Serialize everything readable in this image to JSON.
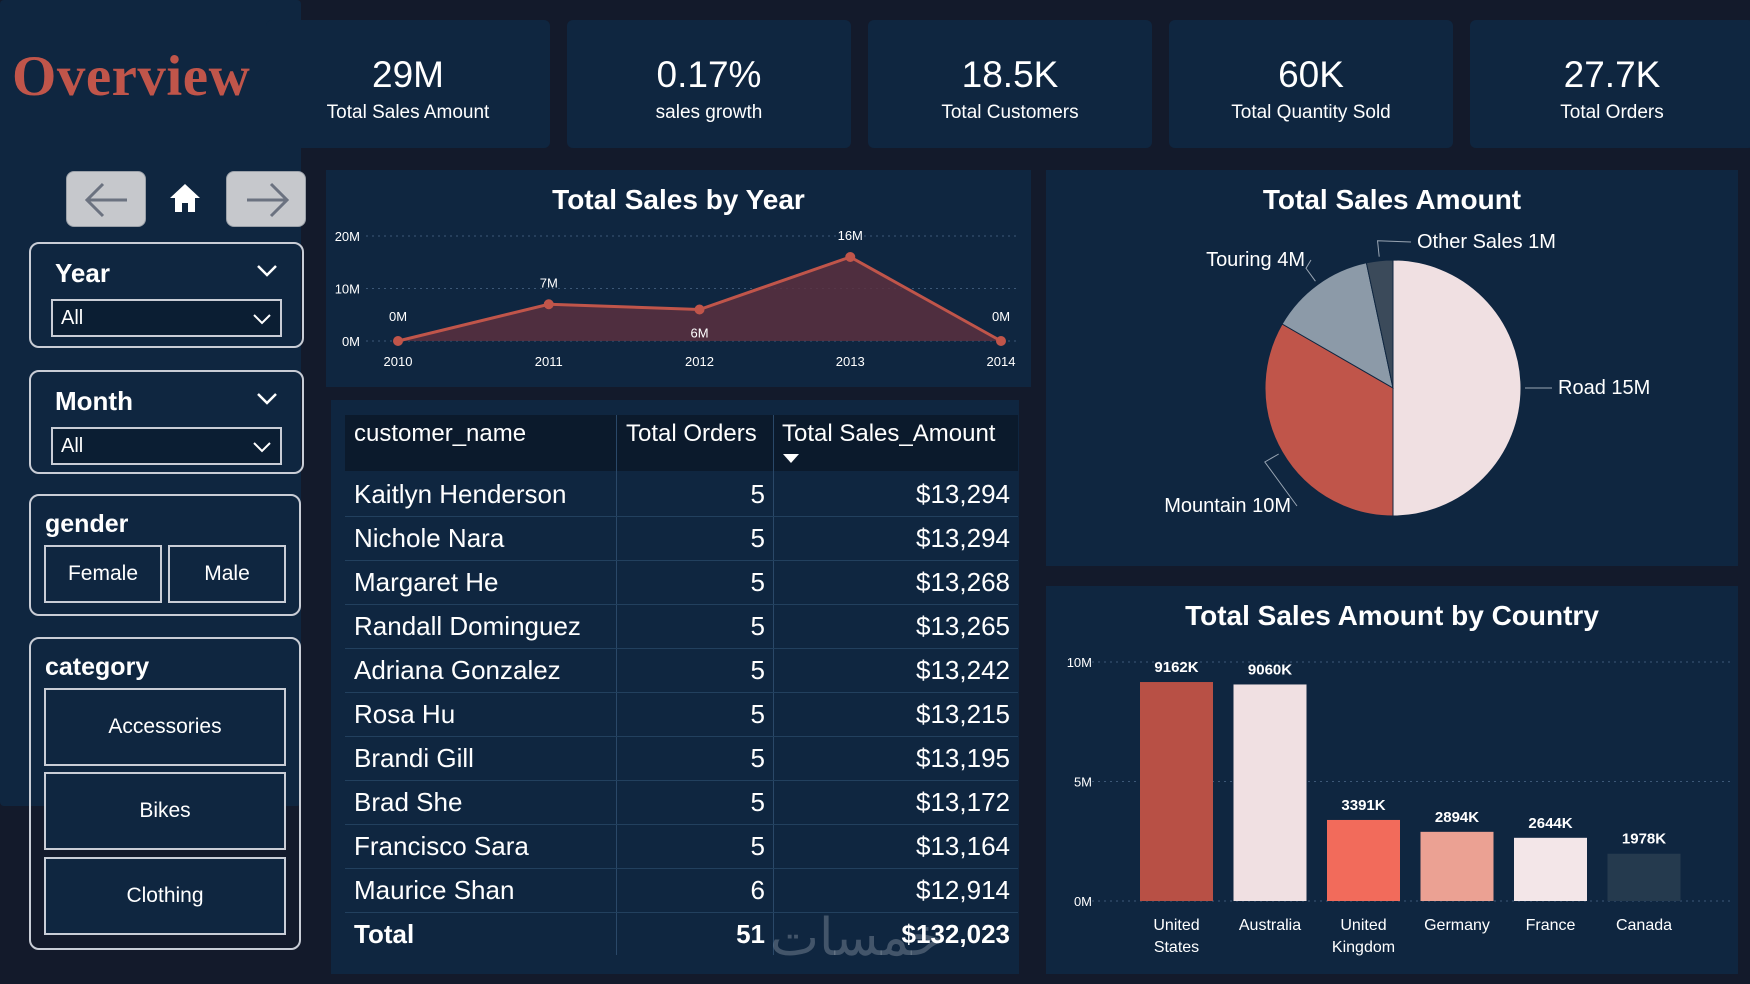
{
  "title": "Overview",
  "kpis": [
    {
      "value": "29M",
      "label": "Total Sales Amount"
    },
    {
      "value": "0.17%",
      "label": "sales growth"
    },
    {
      "value": "18.5K",
      "label": "Total Customers"
    },
    {
      "value": "60K",
      "label": "Total Quantity Sold"
    },
    {
      "value": "27.7K",
      "label": "Total Orders"
    }
  ],
  "filters": {
    "year": {
      "label": "Year",
      "value": "All"
    },
    "month": {
      "label": "Month",
      "value": "All"
    },
    "gender": {
      "label": "gender",
      "options": [
        "Female",
        "Male"
      ]
    },
    "category": {
      "label": "category",
      "options": [
        "Accessories",
        "Bikes",
        "Clothing"
      ]
    }
  },
  "icons": [
    "arrow-left-icon",
    "home-icon",
    "arrow-right-icon",
    "chevron-down-icon"
  ],
  "colors": {
    "background": "#131a2b",
    "panel": "#0f2640",
    "accent": "#c0554a",
    "line": "#c0554a",
    "area": "#5a3040"
  },
  "table": {
    "headers": [
      "customer_name",
      "Total Orders",
      "Total Sales_Amount"
    ],
    "sort_column": "Total Sales_Amount",
    "rows": [
      [
        "Kaitlyn Henderson",
        "5",
        "$13,294"
      ],
      [
        "Nichole Nara",
        "5",
        "$13,294"
      ],
      [
        "Margaret He",
        "5",
        "$13,268"
      ],
      [
        "Randall Dominguez",
        "5",
        "$13,265"
      ],
      [
        "Adriana Gonzalez",
        "5",
        "$13,242"
      ],
      [
        "Rosa Hu",
        "5",
        "$13,215"
      ],
      [
        "Brandi Gill",
        "5",
        "$13,195"
      ],
      [
        "Brad She",
        "5",
        "$13,172"
      ],
      [
        "Francisco Sara",
        "5",
        "$13,164"
      ],
      [
        "Maurice Shan",
        "6",
        "$12,914"
      ]
    ],
    "total": [
      "Total",
      "51",
      "$132,023"
    ]
  },
  "watermark": "خمسات",
  "chart_data": [
    {
      "type": "area",
      "title": "Total Sales by Year",
      "x": [
        "2010",
        "2011",
        "2012",
        "2013",
        "2014"
      ],
      "values": [
        0,
        7,
        6,
        16,
        0
      ],
      "data_labels": [
        "0M",
        "7M",
        "6M",
        "16M",
        "0M"
      ],
      "yticks": [
        "0M",
        "10M",
        "20M"
      ],
      "ylim": [
        0,
        20
      ],
      "unit": "M",
      "grid": true
    },
    {
      "type": "pie",
      "title": "Total Sales Amount",
      "slices": [
        {
          "label": "Road",
          "value": 15,
          "text": "Road 15M",
          "color": "#f0e0e2"
        },
        {
          "label": "Mountain",
          "value": 10,
          "text": "Mountain 10M",
          "color": "#c0554a"
        },
        {
          "label": "Touring",
          "value": 4,
          "text": "Touring 4M",
          "color": "#8c9aa8"
        },
        {
          "label": "Other Sales",
          "value": 1,
          "text": "Other Sales 1M",
          "color": "#3b4a5a"
        }
      ]
    },
    {
      "type": "bar",
      "title": "Total Sales Amount by Country",
      "categories": [
        "United States",
        "Australia",
        "United Kingdom",
        "Germany",
        "France",
        "Canada"
      ],
      "category_lines": [
        [
          "United",
          "States"
        ],
        [
          "Australia"
        ],
        [
          "United",
          "Kingdom"
        ],
        [
          "Germany"
        ],
        [
          "France"
        ],
        [
          "Canada"
        ]
      ],
      "values": [
        9162,
        9060,
        3391,
        2894,
        2644,
        1978
      ],
      "data_labels": [
        "9162K",
        "9060K",
        "3391K",
        "2894K",
        "2644K",
        "1978K"
      ],
      "colors": [
        "#b85045",
        "#f0e0e2",
        "#f26b5b",
        "#eba193",
        "#f3e6e8",
        "#253a4e"
      ],
      "yticks": [
        "0M",
        "5M",
        "10M"
      ],
      "ylim": [
        0,
        10000
      ],
      "grid": true
    }
  ]
}
